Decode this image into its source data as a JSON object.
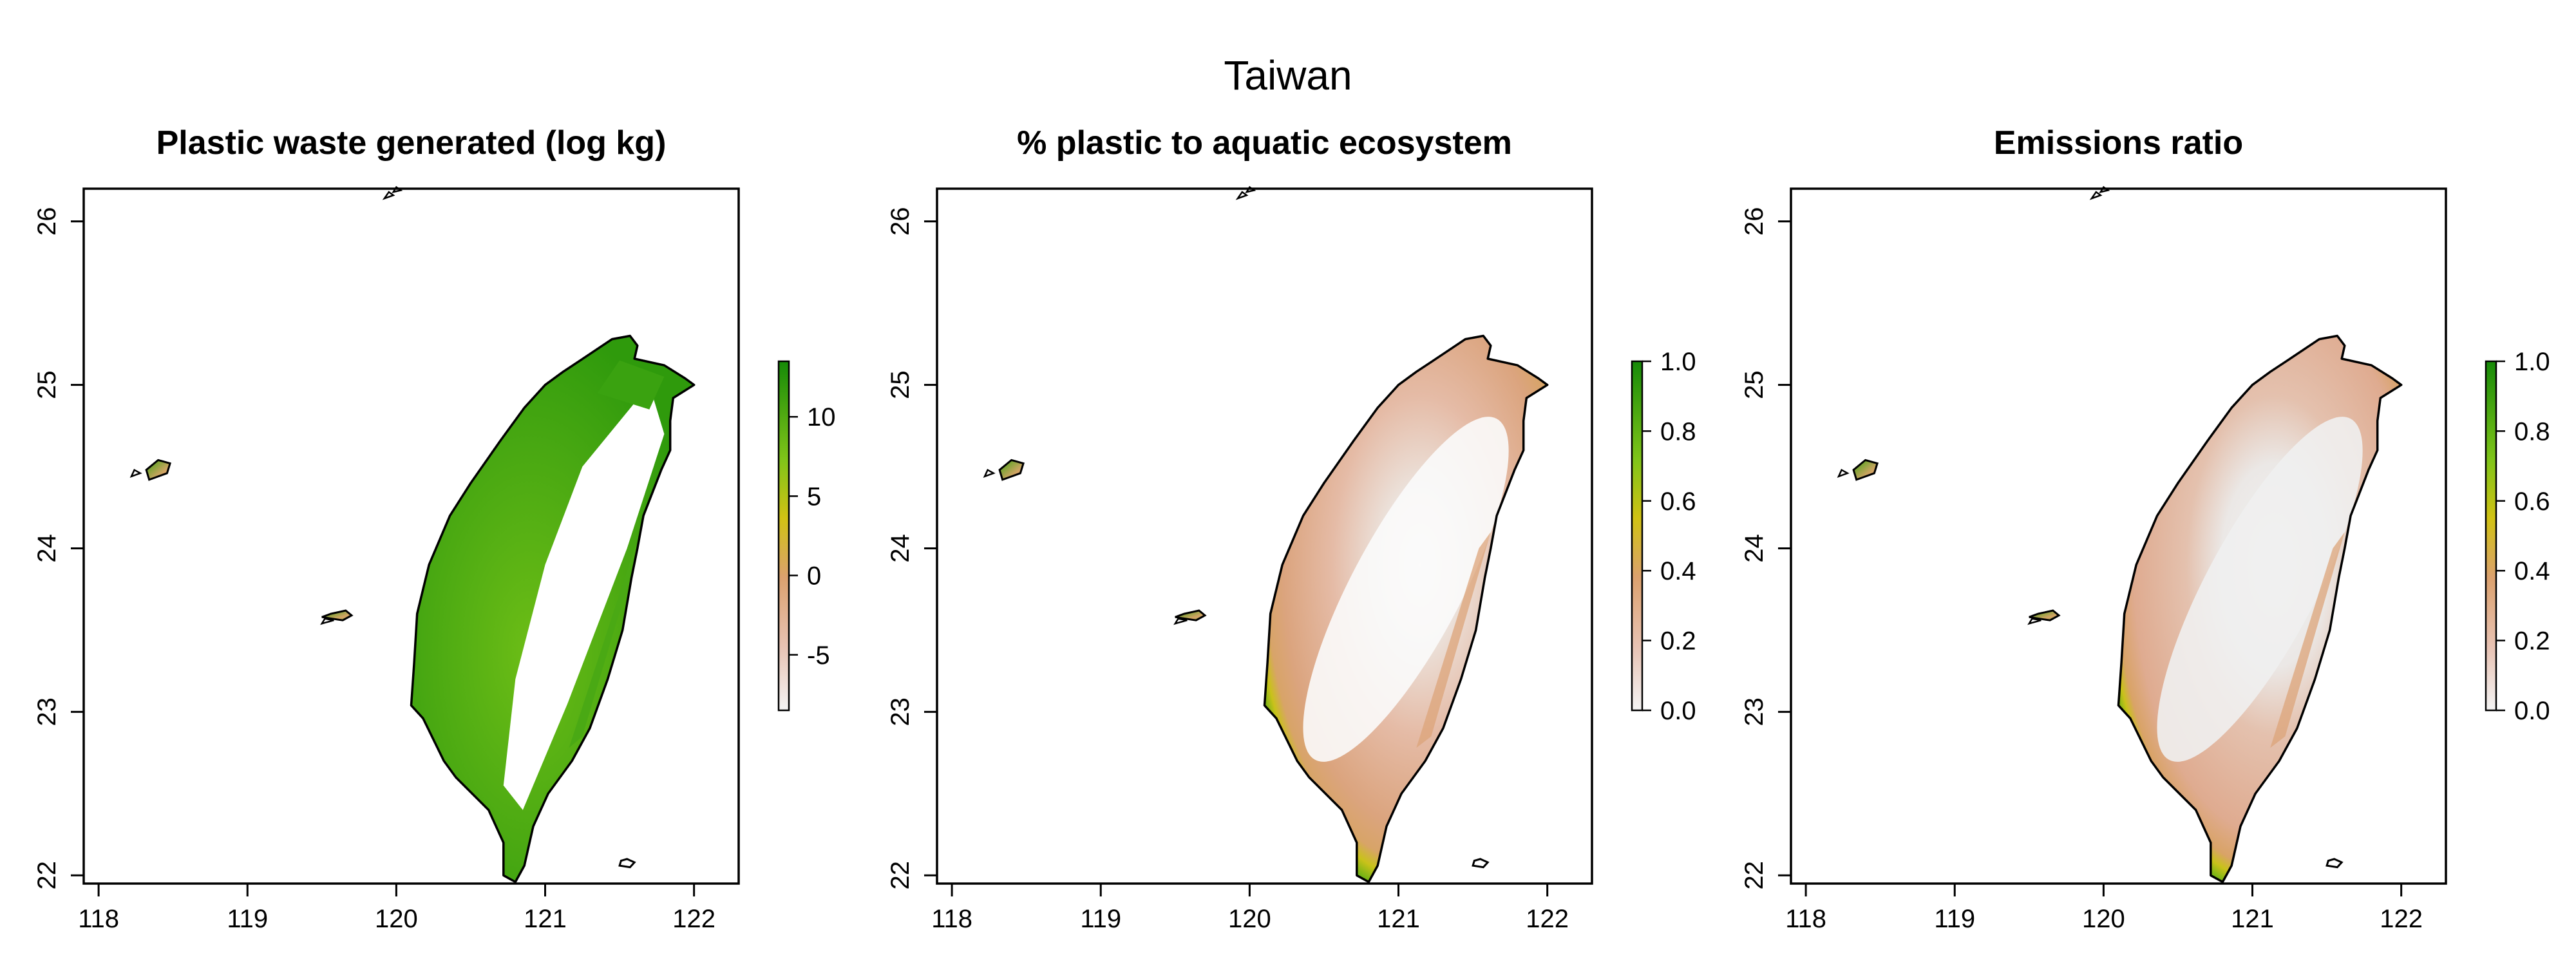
{
  "figure": {
    "title": "Taiwan"
  },
  "x_ticks": [
    "118",
    "119",
    "120",
    "121",
    "122"
  ],
  "y_ticks": [
    "22",
    "23",
    "24",
    "25",
    "26"
  ],
  "colors": {
    "scale_low": "#f2f2f2",
    "scale_pink": "#e8b9a4",
    "scale_tan": "#d9a060",
    "scale_yellow": "#d6c214",
    "scale_lightgreen": "#7cc418",
    "scale_green": "#1e8c0a",
    "coastline": "#000000"
  },
  "panels": [
    {
      "title": "Plastic waste generated (log kg)",
      "legend_ticks": [
        "10",
        "5",
        "0",
        "-5"
      ],
      "legend_values": [
        10,
        5,
        0,
        -5
      ],
      "legend_range": [
        -8.5,
        13.5
      ],
      "fill_pattern": "mostly green on the western plains, white in the central mountains"
    },
    {
      "title": "% plastic to aquatic ecosystem",
      "legend_ticks": [
        "1.0",
        "0.8",
        "0.6",
        "0.4",
        "0.2",
        "0.0"
      ],
      "legend_values": [
        1.0,
        0.8,
        0.6,
        0.4,
        0.2,
        0.0
      ],
      "legend_range": [
        0,
        1
      ],
      "fill_pattern": "green fringe along the coast, pink-tan inland, white along the central ridge"
    },
    {
      "title": "Emissions ratio",
      "legend_ticks": [
        "1.0",
        "0.8",
        "0.6",
        "0.4",
        "0.2",
        "0.0"
      ],
      "legend_values": [
        1.0,
        0.8,
        0.6,
        0.4,
        0.2,
        0.0
      ],
      "legend_range": [
        0,
        1
      ],
      "fill_pattern": "green fringe along the coast, pink-tan interior, light grey in the mountains"
    }
  ],
  "chart_data": {
    "type": "heatmap",
    "title": "Taiwan",
    "x_range": [
      117.9,
      122.3
    ],
    "y_range": [
      21.95,
      26.2
    ],
    "x_ticks": [
      118,
      119,
      120,
      121,
      122
    ],
    "y_ticks": [
      22,
      23,
      24,
      25,
      26
    ],
    "grid": false,
    "legend_placement": "right of each map",
    "panels": [
      {
        "title": "Plastic waste generated (log kg)",
        "color_scale_range": [
          -8.5,
          13.5
        ],
        "color_scale_ticks": [
          10,
          5,
          0,
          -5
        ]
      },
      {
        "title": "% plastic to aquatic ecosystem",
        "color_scale_range": [
          0,
          1
        ],
        "color_scale_ticks": [
          0.0,
          0.2,
          0.4,
          0.6,
          0.8,
          1.0
        ]
      },
      {
        "title": "Emissions ratio",
        "color_scale_range": [
          0,
          1
        ],
        "color_scale_ticks": [
          0.0,
          0.2,
          0.4,
          0.6,
          0.8,
          1.0
        ]
      }
    ]
  }
}
